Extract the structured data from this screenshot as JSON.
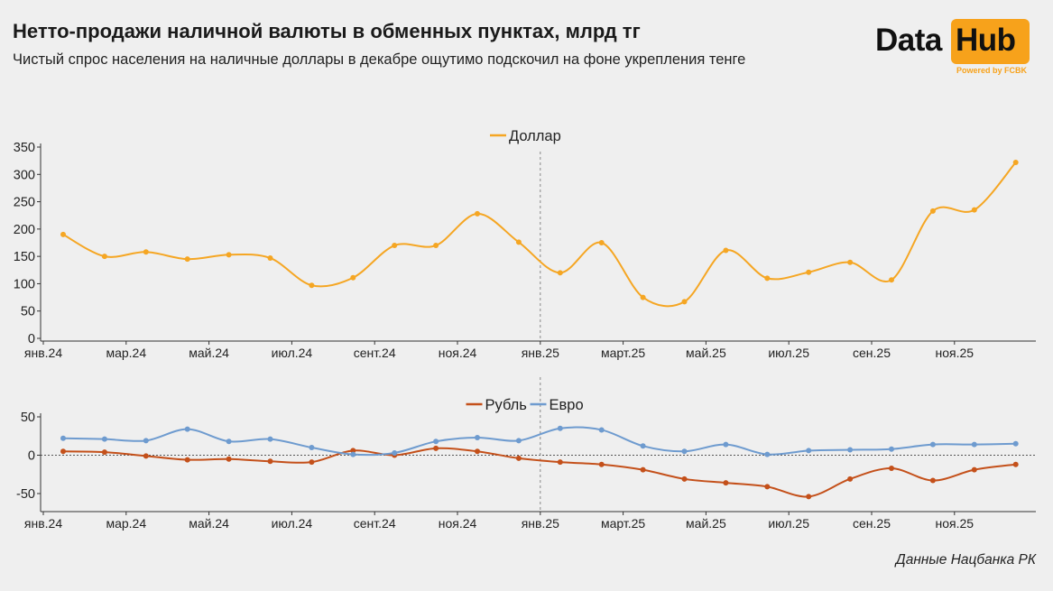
{
  "header": {
    "title": "Нетто-продажи наличной валюты в обменных пунктах, млрд тг",
    "subtitle": "Чистый спрос населения на наличные доллары в декабре ощутимо подскочил на фоне укрепления тенге"
  },
  "logo": {
    "word1": "Data",
    "word2": "Hub",
    "powered": "Powered by FCBK"
  },
  "footer": {
    "source": "Данные Нацбанка РК"
  },
  "colors": {
    "dollar": "#f5a623",
    "ruble": "#c4501a",
    "euro": "#6e9bcf",
    "background": "#efefef"
  },
  "chart_data": [
    {
      "type": "line",
      "x": [
        "2024-01",
        "2024-02",
        "2024-03",
        "2024-04",
        "2024-05",
        "2024-06",
        "2024-07",
        "2024-08",
        "2024-09",
        "2024-10",
        "2024-11",
        "2024-12",
        "2025-01",
        "2025-02",
        "2025-03",
        "2025-04",
        "2025-05",
        "2025-06",
        "2025-07",
        "2025-08",
        "2025-09",
        "2025-10",
        "2025-11",
        "2025-12"
      ],
      "x_tick_labels": [
        "янв.24",
        "мар.24",
        "май.24",
        "июл.24",
        "сент.24",
        "ноя.24",
        "янв.25",
        "март.25",
        "май.25",
        "июл.25",
        "сен.25",
        "ноя.25"
      ],
      "series": [
        {
          "name": "Доллар",
          "values": [
            190,
            150,
            158,
            145,
            153,
            147,
            97,
            111,
            170,
            170,
            228,
            176,
            120,
            175,
            75,
            67,
            161,
            110,
            121,
            139,
            107,
            233,
            235,
            322
          ]
        }
      ],
      "y_ticks": [
        0,
        50,
        100,
        150,
        200,
        250,
        300,
        350
      ],
      "ylim": [
        0,
        350
      ],
      "legend": "top-center",
      "grid": false,
      "vertical_marker_at": "2025-01"
    },
    {
      "type": "line",
      "x": [
        "2024-01",
        "2024-02",
        "2024-03",
        "2024-04",
        "2024-05",
        "2024-06",
        "2024-07",
        "2024-08",
        "2024-09",
        "2024-10",
        "2024-11",
        "2024-12",
        "2025-01",
        "2025-02",
        "2025-03",
        "2025-04",
        "2025-05",
        "2025-06",
        "2025-07",
        "2025-08",
        "2025-09",
        "2025-10",
        "2025-11",
        "2025-12"
      ],
      "x_tick_labels": [
        "янв.24",
        "мар.24",
        "май.24",
        "июл.24",
        "сент.24",
        "ноя.24",
        "янв.25",
        "март.25",
        "май.25",
        "июл.25",
        "сен.25",
        "ноя.25"
      ],
      "series": [
        {
          "name": "Рубль",
          "values": [
            5,
            4,
            -1,
            -6,
            -5,
            -8,
            -9,
            6,
            0,
            9,
            5,
            -4,
            -9,
            -12,
            -19,
            -31,
            -36,
            -41,
            -54,
            -31,
            -17,
            -33,
            -19,
            -12
          ]
        },
        {
          "name": "Евро",
          "values": [
            22,
            21,
            19,
            34,
            18,
            21,
            10,
            1,
            3,
            18,
            23,
            19,
            35,
            33,
            12,
            5,
            14,
            1,
            6,
            7,
            8,
            14,
            14,
            15
          ]
        }
      ],
      "y_ticks": [
        -50,
        0,
        50
      ],
      "ylim": [
        -70,
        50
      ],
      "legend": "top-center",
      "grid": false,
      "zero_line": "dotted",
      "vertical_marker_at": "2025-01"
    }
  ]
}
